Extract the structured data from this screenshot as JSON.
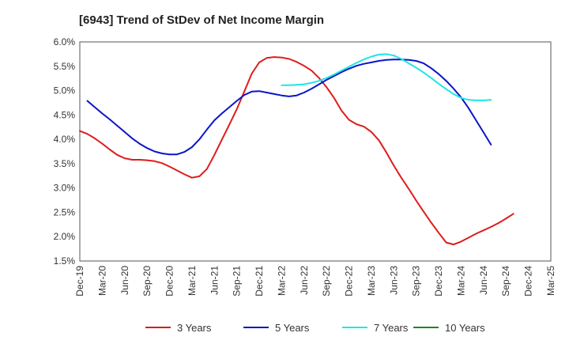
{
  "chart_data": {
    "type": "line",
    "title": "[6943]  Trend of StDev of Net Income Margin",
    "xlabel": "",
    "ylabel": "",
    "ylim": [
      1.5,
      6.0
    ],
    "y_ticks": [
      "1.5%",
      "2.0%",
      "2.5%",
      "3.0%",
      "3.5%",
      "4.0%",
      "4.5%",
      "5.0%",
      "5.5%",
      "6.0%"
    ],
    "x_ticks": [
      "Dec-19",
      "Mar-20",
      "Jun-20",
      "Sep-20",
      "Dec-20",
      "Mar-21",
      "Jun-21",
      "Sep-21",
      "Dec-21",
      "Mar-22",
      "Jun-22",
      "Sep-22",
      "Dec-22",
      "Mar-23",
      "Jun-23",
      "Sep-23",
      "Dec-23",
      "Mar-24",
      "Jun-24",
      "Sep-24",
      "Dec-24",
      "Mar-25"
    ],
    "grid": true,
    "legend_position": "bottom",
    "series": [
      {
        "name": "3 Years",
        "color": "#dd1c1c",
        "points": [
          [
            "Dec-19",
            4.17
          ],
          [
            "Jan-20",
            4.11
          ],
          [
            "Feb-20",
            4.02
          ],
          [
            "Mar-20",
            3.91
          ],
          [
            "Apr-20",
            3.79
          ],
          [
            "May-20",
            3.68
          ],
          [
            "Jun-20",
            3.61
          ],
          [
            "Jul-20",
            3.58
          ],
          [
            "Aug-20",
            3.58
          ],
          [
            "Sep-20",
            3.57
          ],
          [
            "Oct-20",
            3.55
          ],
          [
            "Nov-20",
            3.51
          ],
          [
            "Dec-20",
            3.44
          ],
          [
            "Jan-21",
            3.36
          ],
          [
            "Feb-21",
            3.28
          ],
          [
            "Mar-21",
            3.21
          ],
          [
            "Apr-21",
            3.24
          ],
          [
            "May-21",
            3.39
          ],
          [
            "Jun-21",
            3.68
          ],
          [
            "Jul-21",
            3.99
          ],
          [
            "Aug-21",
            4.3
          ],
          [
            "Sep-21",
            4.62
          ],
          [
            "Oct-21",
            4.98
          ],
          [
            "Nov-21",
            5.35
          ],
          [
            "Dec-21",
            5.58
          ],
          [
            "Jan-22",
            5.67
          ],
          [
            "Feb-22",
            5.69
          ],
          [
            "Mar-22",
            5.68
          ],
          [
            "Apr-22",
            5.65
          ],
          [
            "May-22",
            5.59
          ],
          [
            "Jun-22",
            5.51
          ],
          [
            "Jul-22",
            5.41
          ],
          [
            "Aug-22",
            5.26
          ],
          [
            "Sep-22",
            5.07
          ],
          [
            "Oct-22",
            4.85
          ],
          [
            "Nov-22",
            4.59
          ],
          [
            "Dec-22",
            4.4
          ],
          [
            "Jan-23",
            4.31
          ],
          [
            "Feb-23",
            4.26
          ],
          [
            "Mar-23",
            4.15
          ],
          [
            "Apr-23",
            3.98
          ],
          [
            "May-23",
            3.73
          ],
          [
            "Jun-23",
            3.46
          ],
          [
            "Jul-23",
            3.21
          ],
          [
            "Aug-23",
            2.98
          ],
          [
            "Sep-23",
            2.74
          ],
          [
            "Oct-23",
            2.51
          ],
          [
            "Nov-23",
            2.29
          ],
          [
            "Dec-23",
            2.08
          ],
          [
            "Jan-24",
            1.88
          ],
          [
            "Feb-24",
            1.84
          ],
          [
            "Mar-24",
            1.9
          ],
          [
            "Apr-24",
            1.98
          ],
          [
            "May-24",
            2.06
          ],
          [
            "Jun-24",
            2.13
          ],
          [
            "Jul-24",
            2.2
          ],
          [
            "Aug-24",
            2.28
          ],
          [
            "Sep-24",
            2.37
          ],
          [
            "Oct-24",
            2.47
          ]
        ]
      },
      {
        "name": "5 Years",
        "color": "#0a14c8",
        "points": [
          [
            "Jan-20",
            4.79
          ],
          [
            "Feb-20",
            4.66
          ],
          [
            "Mar-20",
            4.53
          ],
          [
            "Apr-20",
            4.41
          ],
          [
            "May-20",
            4.28
          ],
          [
            "Jun-20",
            4.15
          ],
          [
            "Jul-20",
            4.02
          ],
          [
            "Aug-20",
            3.91
          ],
          [
            "Sep-20",
            3.82
          ],
          [
            "Oct-20",
            3.75
          ],
          [
            "Nov-20",
            3.71
          ],
          [
            "Dec-20",
            3.69
          ],
          [
            "Jan-21",
            3.69
          ],
          [
            "Feb-21",
            3.74
          ],
          [
            "Mar-21",
            3.84
          ],
          [
            "Apr-21",
            4.0
          ],
          [
            "May-21",
            4.2
          ],
          [
            "Jun-21",
            4.39
          ],
          [
            "Jul-21",
            4.53
          ],
          [
            "Aug-21",
            4.66
          ],
          [
            "Sep-21",
            4.79
          ],
          [
            "Oct-21",
            4.91
          ],
          [
            "Nov-21",
            4.98
          ],
          [
            "Dec-21",
            4.99
          ],
          [
            "Jan-22",
            4.96
          ],
          [
            "Feb-22",
            4.93
          ],
          [
            "Mar-22",
            4.9
          ],
          [
            "Apr-22",
            4.88
          ],
          [
            "May-22",
            4.9
          ],
          [
            "Jun-22",
            4.96
          ],
          [
            "Jul-22",
            5.04
          ],
          [
            "Aug-22",
            5.13
          ],
          [
            "Sep-22",
            5.22
          ],
          [
            "Oct-22",
            5.3
          ],
          [
            "Nov-22",
            5.38
          ],
          [
            "Dec-22",
            5.45
          ],
          [
            "Jan-23",
            5.51
          ],
          [
            "Feb-23",
            5.55
          ],
          [
            "Mar-23",
            5.58
          ],
          [
            "Apr-23",
            5.61
          ],
          [
            "May-23",
            5.63
          ],
          [
            "Jun-23",
            5.64
          ],
          [
            "Jul-23",
            5.64
          ],
          [
            "Aug-23",
            5.63
          ],
          [
            "Sep-23",
            5.61
          ],
          [
            "Oct-23",
            5.56
          ],
          [
            "Nov-23",
            5.46
          ],
          [
            "Dec-23",
            5.34
          ],
          [
            "Jan-24",
            5.2
          ],
          [
            "Feb-24",
            5.04
          ],
          [
            "Mar-24",
            4.86
          ],
          [
            "Apr-24",
            4.64
          ],
          [
            "May-24",
            4.39
          ],
          [
            "Jun-24",
            4.14
          ],
          [
            "Jul-24",
            3.89
          ]
        ]
      },
      {
        "name": "7 Years",
        "color": "#1ee6e6",
        "points": [
          [
            "Mar-22",
            5.11
          ],
          [
            "Apr-22",
            5.11
          ],
          [
            "May-22",
            5.12
          ],
          [
            "Jun-22",
            5.13
          ],
          [
            "Jul-22",
            5.16
          ],
          [
            "Aug-22",
            5.2
          ],
          [
            "Sep-22",
            5.26
          ],
          [
            "Oct-22",
            5.33
          ],
          [
            "Nov-22",
            5.41
          ],
          [
            "Dec-22",
            5.49
          ],
          [
            "Jan-23",
            5.57
          ],
          [
            "Feb-23",
            5.64
          ],
          [
            "Mar-23",
            5.7
          ],
          [
            "Apr-23",
            5.74
          ],
          [
            "May-23",
            5.75
          ],
          [
            "Jun-23",
            5.72
          ],
          [
            "Jul-23",
            5.65
          ],
          [
            "Aug-23",
            5.56
          ],
          [
            "Sep-23",
            5.47
          ],
          [
            "Oct-23",
            5.37
          ],
          [
            "Nov-23",
            5.26
          ],
          [
            "Dec-23",
            5.14
          ],
          [
            "Jan-24",
            5.03
          ],
          [
            "Feb-24",
            4.93
          ],
          [
            "Mar-24",
            4.85
          ],
          [
            "Apr-24",
            4.81
          ],
          [
            "May-24",
            4.8
          ],
          [
            "Jun-24",
            4.8
          ],
          [
            "Jul-24",
            4.81
          ]
        ]
      },
      {
        "name": "10 Years",
        "color": "#1a8a1a",
        "points": []
      }
    ]
  }
}
